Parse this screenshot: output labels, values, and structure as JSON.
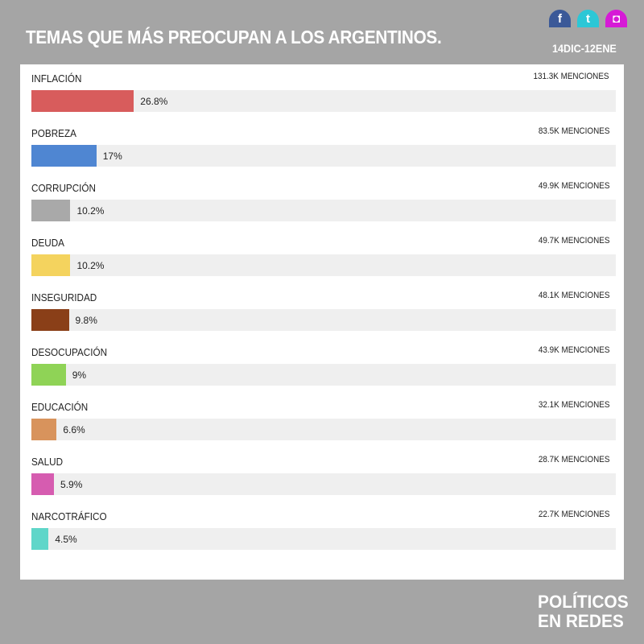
{
  "header": {
    "title": "TEMAS QUE MÁS PREOCUPAN A LOS ARGENTINOS.",
    "dates": "14DIC-12ENE"
  },
  "social": [
    {
      "icon": "facebook-icon",
      "glyph": "f",
      "color": "#3b5998"
    },
    {
      "icon": "twitter-icon",
      "glyph": "t",
      "color": "#2cc7d6"
    },
    {
      "icon": "instagram-icon",
      "glyph": "◘",
      "color": "#d61ad6"
    }
  ],
  "logo": {
    "line1": "POLÍTICOS",
    "line2": "EN REDES"
  },
  "chart_data": {
    "type": "bar",
    "orientation": "horizontal",
    "xlim": [
      0,
      100
    ],
    "categories": [
      "INFLACIÓN",
      "POBREZA",
      "CORRUPCIÓN",
      "DEUDA",
      "INSEGURIDAD",
      "DESOCUPACIÓN",
      "EDUCACIÓN",
      "SALUD",
      "NARCOTRÁFICO"
    ],
    "values": [
      26.8,
      17,
      10.2,
      10.2,
      9.8,
      9,
      6.6,
      5.9,
      4.5
    ],
    "value_labels": [
      "26.8%",
      "17%",
      "10.2%",
      "10.2%",
      "9.8%",
      "9%",
      "6.6%",
      "5.9%",
      "4.5%"
    ],
    "mentions": [
      "131.3K MENCIONES",
      "83.5K MENCIONES",
      "49.9K MENCIONES",
      "49.7K MENCIONES",
      "48.1K MENCIONES",
      "43.9K MENCIONES",
      "32.1K MENCIONES",
      "28.7K MENCIONES",
      "22.7K MENCIONES"
    ],
    "colors": [
      "#d85c5c",
      "#4f86d2",
      "#a9a9a9",
      "#f4d35e",
      "#8a3f18",
      "#8fd356",
      "#d8935c",
      "#d65cb0",
      "#5fd6c9"
    ]
  }
}
